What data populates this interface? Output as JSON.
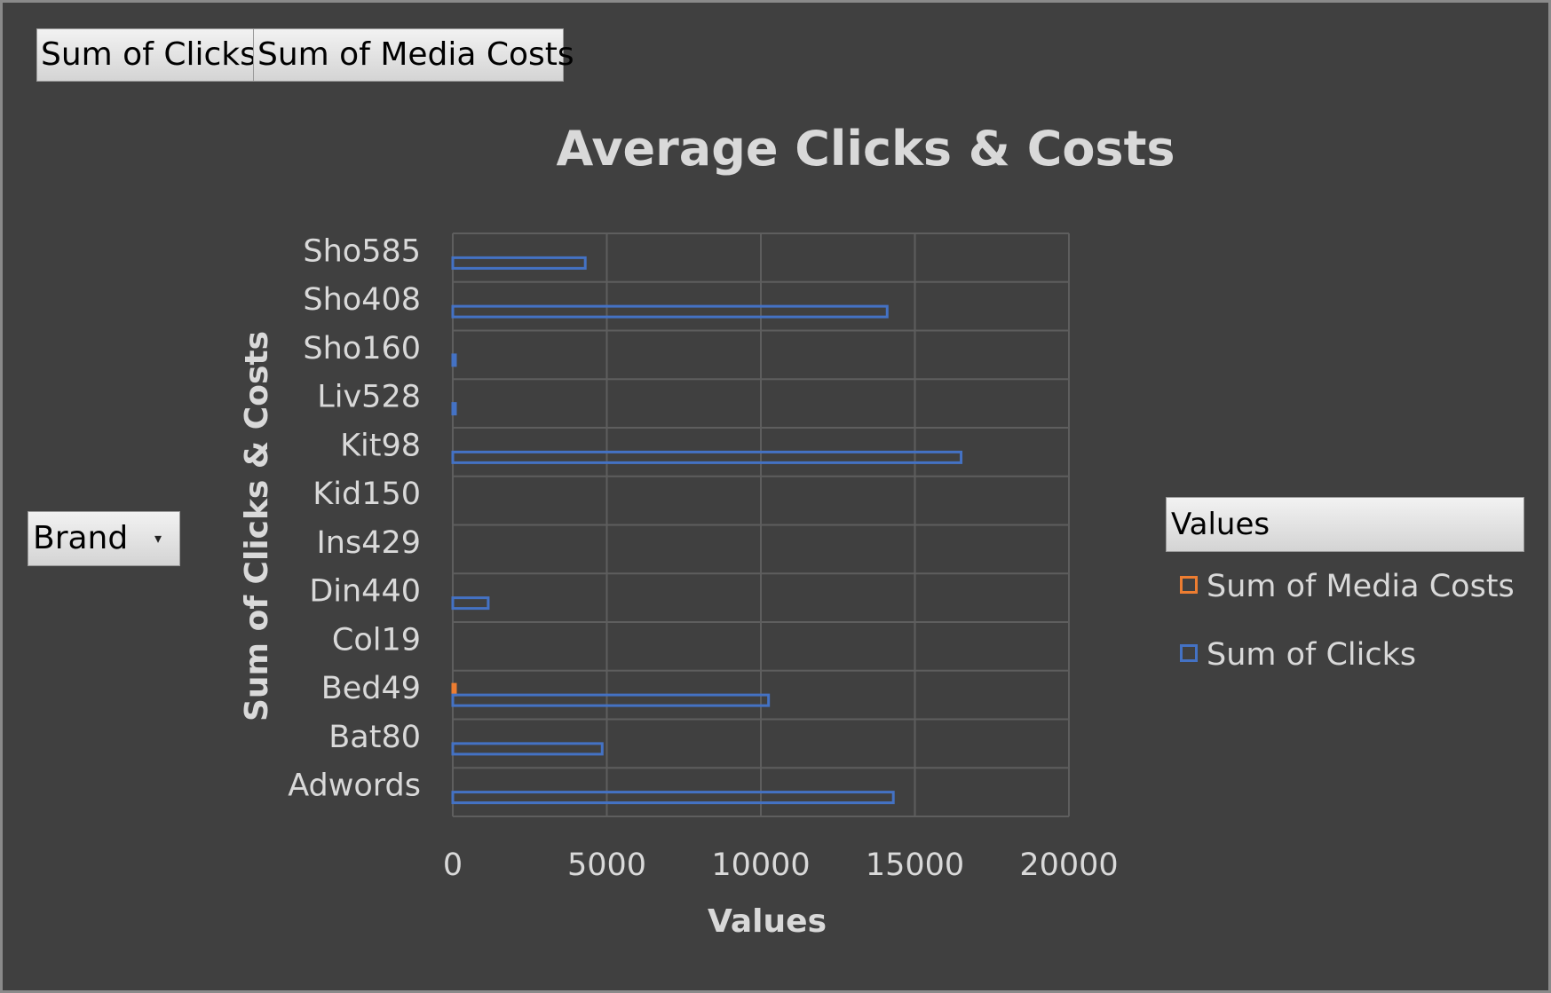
{
  "pivot_fields": {
    "clicks_label": "Sum of Clicks",
    "costs_label": "Sum of Media Costs"
  },
  "filter": {
    "label": "Brand",
    "caret": "▾"
  },
  "legend": {
    "header": "Values",
    "items": [
      {
        "label": "Sum of Media Costs",
        "color": "#ed7d31"
      },
      {
        "label": "Sum of Clicks",
        "color": "#4472c4"
      }
    ]
  },
  "chart_data": {
    "type": "bar",
    "orientation": "horizontal",
    "title": "Average Clicks & Costs",
    "xlabel": "Values",
    "ylabel": "Sum of Clicks & Costs",
    "xlim": [
      0,
      20000
    ],
    "xticks": [
      0,
      5000,
      10000,
      15000,
      20000
    ],
    "grid": true,
    "legend_position": "right",
    "categories": [
      "Adwords",
      "Bat80",
      "Bed49",
      "Col19",
      "Din440",
      "Ins429",
      "Kid150",
      "Kit98",
      "Liv528",
      "Sho160",
      "Sho408",
      "Sho585"
    ],
    "series": [
      {
        "name": "Sum of Media Costs",
        "color": "#ed7d31",
        "values": [
          0,
          0,
          50,
          0,
          0,
          0,
          0,
          0,
          0,
          0,
          0,
          0
        ]
      },
      {
        "name": "Sum of Clicks",
        "color": "#4472c4",
        "values": [
          14300,
          4850,
          10250,
          0,
          1150,
          0,
          0,
          16500,
          50,
          50,
          14100,
          4300
        ]
      }
    ]
  }
}
